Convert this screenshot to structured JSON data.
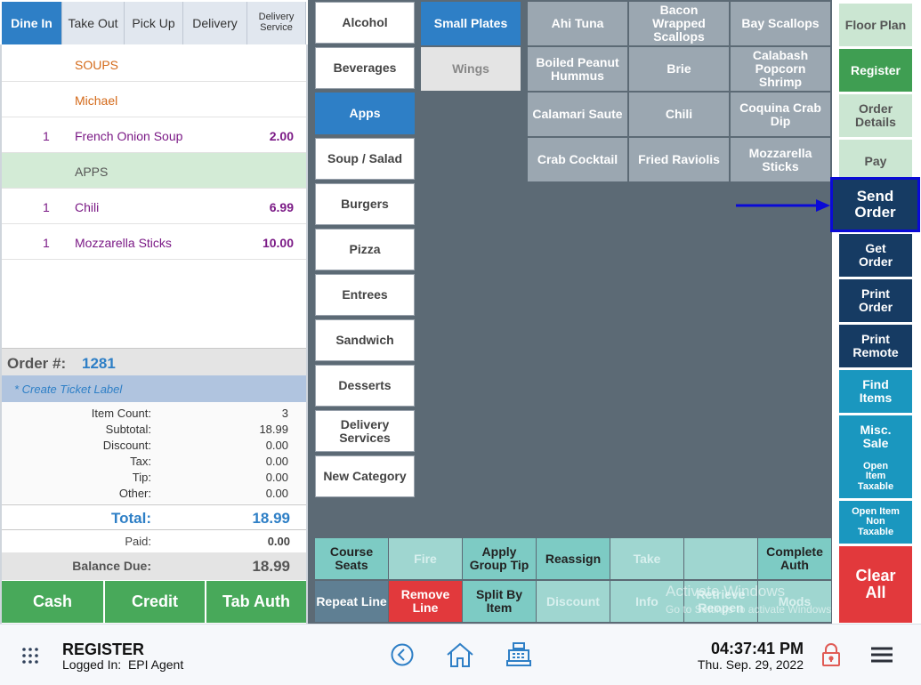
{
  "order_types": [
    "Dine In",
    "Take Out",
    "Pick Up",
    "Delivery",
    "Delivery Service"
  ],
  "ticket": {
    "lines": [
      {
        "qty": "",
        "name": "SOUPS",
        "price": ""
      },
      {
        "qty": "",
        "name": "Michael",
        "price": ""
      },
      {
        "qty": "1",
        "name": "French Onion Soup",
        "price": "2.00"
      },
      {
        "qty": "",
        "name": "APPS",
        "price": ""
      },
      {
        "qty": "1",
        "name": "Chili",
        "price": "6.99"
      },
      {
        "qty": "1",
        "name": "Mozzarella Sticks",
        "price": "10.00"
      }
    ],
    "order_label": "Order #:",
    "order_number": "1281",
    "create_label": "* Create Ticket Label",
    "summary": {
      "item_count_label": "Item Count:",
      "item_count": "3",
      "subtotal_label": "Subtotal:",
      "subtotal": "18.99",
      "discount_label": "Discount:",
      "discount": "0.00",
      "tax_label": "Tax:",
      "tax": "0.00",
      "tip_label": "Tip:",
      "tip": "0.00",
      "other_label": "Other:",
      "other": "0.00"
    },
    "total_label": "Total:",
    "total": "18.99",
    "paid_label": "Paid:",
    "paid": "0.00",
    "balance_label": "Balance Due:",
    "balance": "18.99"
  },
  "payment_buttons": [
    "Cash",
    "Credit",
    "Tab Auth"
  ],
  "categories": [
    "Alcohol",
    "Beverages",
    "Apps",
    "Soup / Salad",
    "Burgers",
    "Pizza",
    "Entrees",
    "Sandwich",
    "Desserts",
    "Delivery Services",
    "New Category"
  ],
  "active_category": "Apps",
  "subcategories": [
    "Small Plates",
    "Wings"
  ],
  "items": [
    "Ahi Tuna",
    "Bacon Wrapped Scallops",
    "Bay Scallops",
    "Boiled Peanut Hummus",
    "Brie",
    "Calabash Popcorn Shrimp",
    "Calamari Saute",
    "Chili",
    "Coquina Crab Dip",
    "Crab Cocktail",
    "Fried Raviolis",
    "Mozzarella Sticks"
  ],
  "actions": {
    "floor_plan": "Floor Plan",
    "register": "Register",
    "order_details": "Order Details",
    "pay": "Pay",
    "send_order": "Send Order",
    "get_order": "Get Order",
    "print_order": "Print Order",
    "print_remote": "Print Remote",
    "find_items": "Find Items",
    "misc_sale": "Misc. Sale",
    "open_item_taxable": "Open Item Taxable",
    "open_item_non_taxable": "Open Item Non Taxable",
    "clear_all": "Clear All"
  },
  "functions_row1": [
    "Course Seats",
    "Fire",
    "Apply Group Tip",
    "Reassign",
    "Take",
    "",
    "Complete Auth"
  ],
  "functions_row2": [
    "Repeat Line",
    "Remove Line",
    "Split By Item",
    "Discount",
    "Info",
    "Retrieve Reopen",
    "Mods"
  ],
  "watermark": {
    "title": "Activate Windows",
    "subtitle": "Go to Settings to activate Windows."
  },
  "footer": {
    "title": "REGISTER",
    "logged_in": "Logged In:  EPI Agent",
    "time": "04:37:41 PM",
    "date": "Thu. Sep. 29, 2022"
  },
  "colors": {
    "accent": "#2e7fc6",
    "highlight": "#0a0ad6",
    "navy": "#163b63",
    "green": "#3f9e52",
    "red": "#e2393c",
    "teal": "#1a97bf"
  }
}
